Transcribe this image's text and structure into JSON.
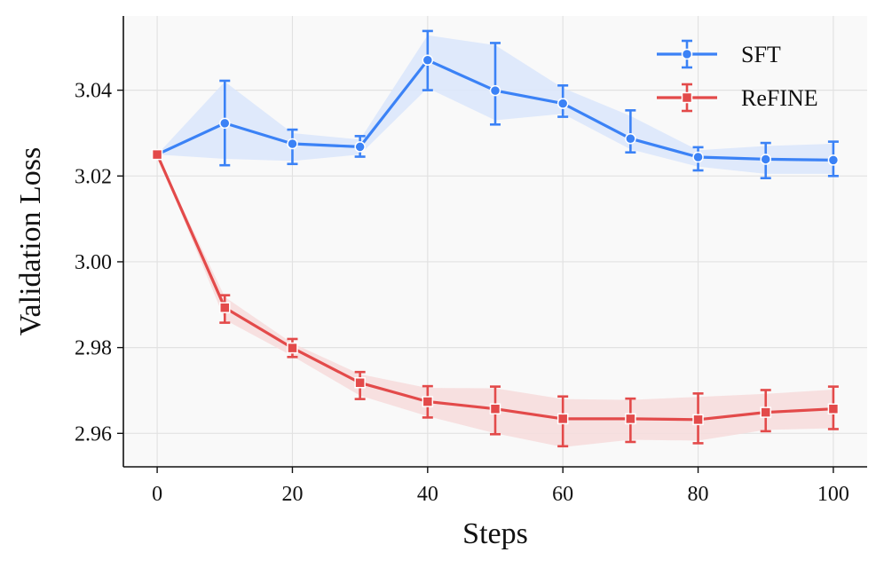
{
  "chart_data": {
    "type": "line",
    "title": "",
    "xlabel": "Steps",
    "ylabel": "Validation Loss",
    "xlim": [
      -5,
      105
    ],
    "ylim": [
      2.9522,
      3.0573
    ],
    "xticks": [
      0,
      20,
      40,
      60,
      80,
      100
    ],
    "yticks": [
      2.96,
      2.98,
      3.0,
      3.02,
      3.04
    ],
    "xtick_labels": [
      "0",
      "20",
      "40",
      "60",
      "80",
      "100"
    ],
    "ytick_labels": [
      "2.96",
      "2.98",
      "3.00",
      "3.02",
      "3.04"
    ],
    "grid": true,
    "legend_position": "top-right",
    "x": [
      0,
      10,
      20,
      30,
      40,
      50,
      60,
      70,
      80,
      90,
      100
    ],
    "series": [
      {
        "name": "SFT",
        "color": "#3b82f6",
        "band_color": "#dbe6fb",
        "marker": "circle",
        "values": [
          3.025,
          3.0323,
          3.0275,
          3.0268,
          3.047,
          3.0399,
          3.0369,
          3.0287,
          3.0244,
          3.0239,
          3.0237
        ],
        "band_low": [
          3.025,
          3.024,
          3.0235,
          3.025,
          3.0405,
          3.033,
          3.0345,
          3.0262,
          3.0222,
          3.0205,
          3.0205
        ],
        "band_high": [
          3.025,
          3.042,
          3.03,
          3.0285,
          3.0528,
          3.0505,
          3.0405,
          3.034,
          3.026,
          3.027,
          3.0275
        ],
        "err_low": [
          3.025,
          3.0225,
          3.0228,
          3.0245,
          3.04,
          3.032,
          3.0338,
          3.0255,
          3.0213,
          3.0195,
          3.02
        ],
        "err_high": [
          3.025,
          3.0422,
          3.0308,
          3.0293,
          3.0538,
          3.051,
          3.0411,
          3.0353,
          3.0267,
          3.0277,
          3.028
        ]
      },
      {
        "name": "ReFINE",
        "color": "#e34a4a",
        "band_color": "#f7dcdc",
        "marker": "square",
        "values": [
          3.025,
          2.9893,
          2.9799,
          2.9718,
          2.9674,
          2.9657,
          2.9634,
          2.9634,
          2.9632,
          2.9649,
          2.9657
        ],
        "band_low": [
          3.025,
          2.9865,
          2.978,
          2.9688,
          2.964,
          2.96,
          2.9568,
          2.9585,
          2.9583,
          2.9608,
          2.9612
        ],
        "band_high": [
          3.025,
          2.9918,
          2.981,
          2.9738,
          2.9706,
          2.9705,
          2.968,
          2.9678,
          2.9685,
          2.9692,
          2.9702
        ],
        "err_low": [
          3.025,
          2.9858,
          2.9778,
          2.968,
          2.9637,
          2.9598,
          2.957,
          2.958,
          2.9577,
          2.9605,
          2.961
        ],
        "err_high": [
          3.025,
          2.9922,
          2.982,
          2.9743,
          2.971,
          2.9709,
          2.9686,
          2.9681,
          2.9693,
          2.9701,
          2.9709
        ]
      }
    ]
  }
}
